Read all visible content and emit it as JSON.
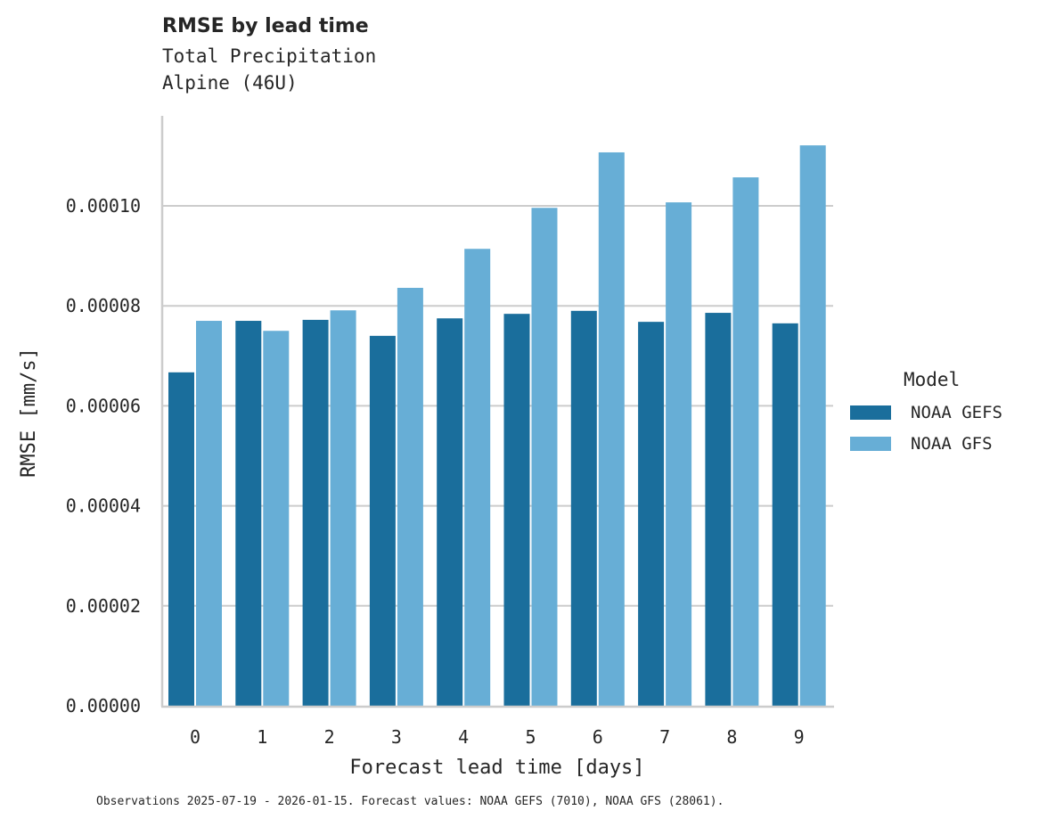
{
  "header": {
    "title": "RMSE by lead time",
    "subtitle_line1": "Total Precipitation",
    "subtitle_line2": "Alpine (46U)"
  },
  "legend": {
    "title": "Model",
    "items": [
      {
        "label": "NOAA GEFS",
        "color": "#1a6e9c"
      },
      {
        "label": "NOAA GFS",
        "color": "#67aed6"
      }
    ]
  },
  "footnote": "Observations 2025-07-19 - 2026-01-15. Forecast values: NOAA GEFS (7010), NOAA GFS (28061).",
  "chart_data": {
    "type": "bar",
    "title": "RMSE by lead time",
    "subtitle": "Total Precipitation / Alpine (46U)",
    "xlabel": "Forecast lead time [days]",
    "ylabel": "RMSE [mm/s]",
    "categories": [
      "0",
      "1",
      "2",
      "3",
      "4",
      "5",
      "6",
      "7",
      "8",
      "9"
    ],
    "series": [
      {
        "name": "NOAA GEFS",
        "color": "#1a6e9c",
        "values": [
          6.67e-05,
          7.7e-05,
          7.72e-05,
          7.4e-05,
          7.75e-05,
          7.84e-05,
          7.9e-05,
          7.68e-05,
          7.86e-05,
          7.65e-05
        ]
      },
      {
        "name": "NOAA GFS",
        "color": "#67aed6",
        "values": [
          7.7e-05,
          7.5e-05,
          7.91e-05,
          8.36e-05,
          9.14e-05,
          9.96e-05,
          0.0001107,
          0.0001007,
          0.0001057,
          0.0001121
        ]
      }
    ],
    "yticks": [
      "0.00000",
      "0.00002",
      "0.00004",
      "0.00006",
      "0.00008",
      "0.00010"
    ],
    "ylim": [
      0,
      0.000118
    ],
    "grid": "horizontal",
    "legend_position": "right"
  }
}
